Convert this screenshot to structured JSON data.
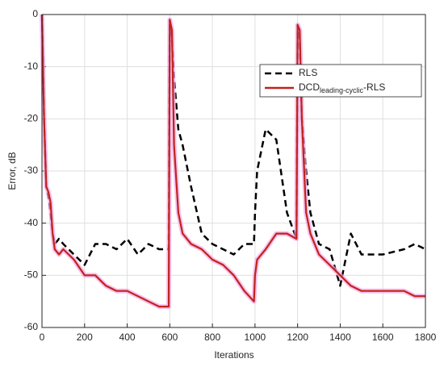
{
  "chart_data": {
    "type": "line",
    "xlabel": "Iterations",
    "ylabel": "Error, dB",
    "x": [
      0,
      10,
      20,
      30,
      40,
      50,
      60,
      80,
      100,
      150,
      200,
      250,
      300,
      350,
      400,
      450,
      500,
      550,
      595,
      600,
      610,
      620,
      640,
      660,
      700,
      750,
      800,
      850,
      900,
      950,
      995,
      1000,
      1010,
      1050,
      1100,
      1150,
      1195,
      1200,
      1210,
      1220,
      1240,
      1260,
      1300,
      1350,
      1400,
      1450,
      1500,
      1600,
      1700,
      1750,
      1800
    ],
    "series": [
      {
        "name": "RLS",
        "color": "#000000",
        "dash": true,
        "values": [
          0,
          -20,
          -33,
          -35,
          -38,
          -42,
          -44,
          -43,
          -44,
          -46,
          -48,
          -44,
          -44,
          -45,
          -43,
          -46,
          -44,
          -45,
          -45,
          -1,
          -5,
          -12,
          -22,
          -25,
          -33,
          -42,
          -44,
          -45,
          -46,
          -44,
          -44,
          -38,
          -30,
          -22,
          -24,
          -38,
          -43,
          -2,
          -5,
          -20,
          -30,
          -38,
          -44,
          -45,
          -52,
          -42,
          -46,
          -46,
          -45,
          -44,
          -45
        ]
      },
      {
        "name": "DCDleading-cyclic-RLS",
        "color": "#c0231c",
        "dash": false,
        "values": [
          0,
          -20,
          -33,
          -34,
          -36,
          -42,
          -45,
          -46,
          -45,
          -47,
          -50,
          -50,
          -52,
          -53,
          -53,
          -54,
          -55,
          -56,
          -56,
          -1,
          -3,
          -25,
          -38,
          -42,
          -44,
          -45,
          -47,
          -48,
          -50,
          -53,
          -55,
          -50,
          -47,
          -45,
          -42,
          -42,
          -43,
          -2,
          -3,
          -20,
          -38,
          -42,
          -46,
          -48,
          -50,
          -52,
          -53,
          -53,
          -53,
          -54,
          -54
        ]
      }
    ],
    "xlim": [
      0,
      1800
    ],
    "xticks": [
      0,
      200,
      400,
      600,
      800,
      1000,
      1200,
      1400,
      1600,
      1800
    ],
    "ylim": [
      -60,
      0
    ],
    "yticks": [
      -60,
      -50,
      -40,
      -30,
      -20,
      -10,
      0
    ],
    "grid": true,
    "legend": "northeast"
  }
}
